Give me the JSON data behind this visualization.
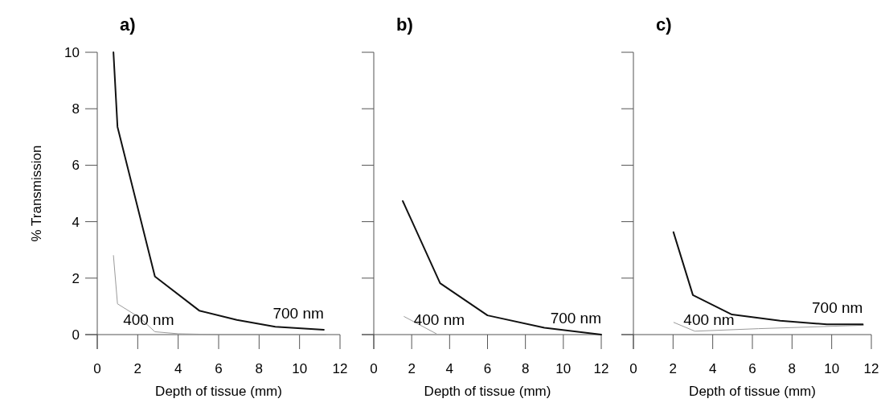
{
  "chart_data": [
    {
      "type": "line",
      "title": "a)",
      "xlabel": "Depth of tissue (mm)",
      "ylabel": "% Transmission",
      "xlim": [
        0,
        12
      ],
      "xticks": [
        0,
        2,
        4,
        6,
        8,
        10,
        12
      ],
      "ylim": [
        0,
        10
      ],
      "yticks": [
        0,
        2,
        4,
        6,
        8,
        10
      ],
      "marker": "none",
      "line_style": "solid",
      "grid": false,
      "series": [
        {
          "name": "400 nm",
          "color": "#9a9a9a",
          "x": [
            0.8,
            1.0,
            2.1,
            2.85,
            4,
            6,
            11.3
          ],
          "values": [
            2.8,
            1.09,
            0.6,
            0.1,
            0.03,
            0,
            0
          ]
        },
        {
          "name": "700 nm",
          "color": "#111111",
          "x": [
            0.8,
            1.0,
            2.85,
            5.04,
            6.9,
            8.8,
            11.2
          ],
          "values": [
            10,
            7.36,
            2.06,
            0.85,
            0.52,
            0.28,
            0.17
          ]
        }
      ]
    },
    {
      "type": "line",
      "title": "b)",
      "xlabel": "Depth of tissue (mm)",
      "xlim": [
        0,
        12
      ],
      "xticks": [
        0,
        2,
        4,
        6,
        8,
        10,
        12
      ],
      "ylim": [
        0,
        10
      ],
      "yticks": [
        0,
        2,
        4,
        6,
        8,
        10
      ],
      "tick_labels": "x",
      "marker": "none",
      "line_style": "solid",
      "grid": false,
      "series": [
        {
          "name": "400 nm",
          "color": "#9a9a9a",
          "x": [
            1.6,
            3.3
          ],
          "values": [
            0.64,
            0.03
          ]
        },
        {
          "name": "700 nm",
          "color": "#111111",
          "x": [
            1.53,
            3.5,
            6.0,
            9.0,
            12
          ],
          "values": [
            4.73,
            1.82,
            0.68,
            0.24,
            0
          ]
        }
      ]
    },
    {
      "type": "line",
      "title": "c)",
      "xlabel": "Depth of tissue (mm)",
      "xlim": [
        0,
        12
      ],
      "xticks": [
        0,
        2,
        4,
        6,
        8,
        10,
        12
      ],
      "ylim": [
        0,
        10
      ],
      "yticks": [
        0,
        2,
        4,
        6,
        8,
        10
      ],
      "tick_labels": "x",
      "marker": "none",
      "line_style": "solid",
      "grid": false,
      "series": [
        {
          "name": "400 nm",
          "color": "#9a9a9a",
          "x": [
            2.04,
            3.1,
            6.3,
            11.6
          ],
          "values": [
            0.43,
            0.12,
            0.21,
            0.33
          ]
        },
        {
          "name": "700 nm",
          "color": "#111111",
          "x": [
            2.02,
            3.0,
            4.97,
            7.4,
            9.76,
            11.57
          ],
          "values": [
            3.63,
            1.4,
            0.71,
            0.49,
            0.36,
            0.36
          ]
        }
      ]
    }
  ]
}
